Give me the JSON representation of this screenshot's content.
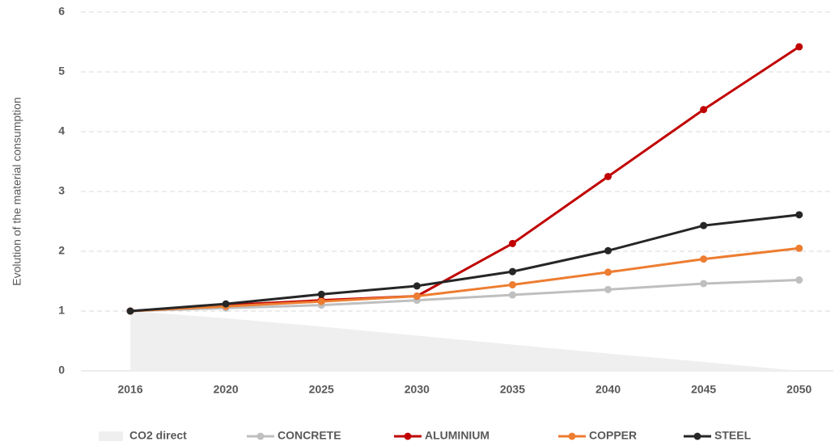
{
  "chart_data": {
    "type": "line",
    "y_label": "Evolution of the material consumption",
    "categories": [
      "2016",
      "2020",
      "2025",
      "2030",
      "2035",
      "2040",
      "2045",
      "2050"
    ],
    "series": [
      {
        "name": "CO2 direct",
        "kind": "area",
        "color": "#efefef",
        "values": [
          1,
          0.88,
          0.74,
          0.59,
          0.44,
          0.29,
          0.15,
          0
        ]
      },
      {
        "name": "CONCRETE",
        "color": "#bfbfbf",
        "values": [
          1,
          1.05,
          1.1,
          1.18,
          1.27,
          1.36,
          1.46,
          1.52
        ]
      },
      {
        "name": "ALUMINIUM",
        "color": "#c00000",
        "values": [
          1,
          1.1,
          1.18,
          1.25,
          2.13,
          3.25,
          4.37,
          5.42
        ]
      },
      {
        "name": "COPPER",
        "color": "#ed7d31",
        "values": [
          1,
          1.08,
          1.16,
          1.25,
          1.44,
          1.65,
          1.87,
          2.05
        ]
      },
      {
        "name": "STEEL",
        "color": "#262626",
        "values": [
          1,
          1.12,
          1.28,
          1.42,
          1.66,
          2.01,
          2.43,
          2.61
        ]
      }
    ],
    "ylim": [
      0,
      6
    ],
    "yticks": [
      0,
      1,
      2,
      3,
      4,
      5,
      6
    ],
    "grid": true,
    "legend": "bottom"
  }
}
